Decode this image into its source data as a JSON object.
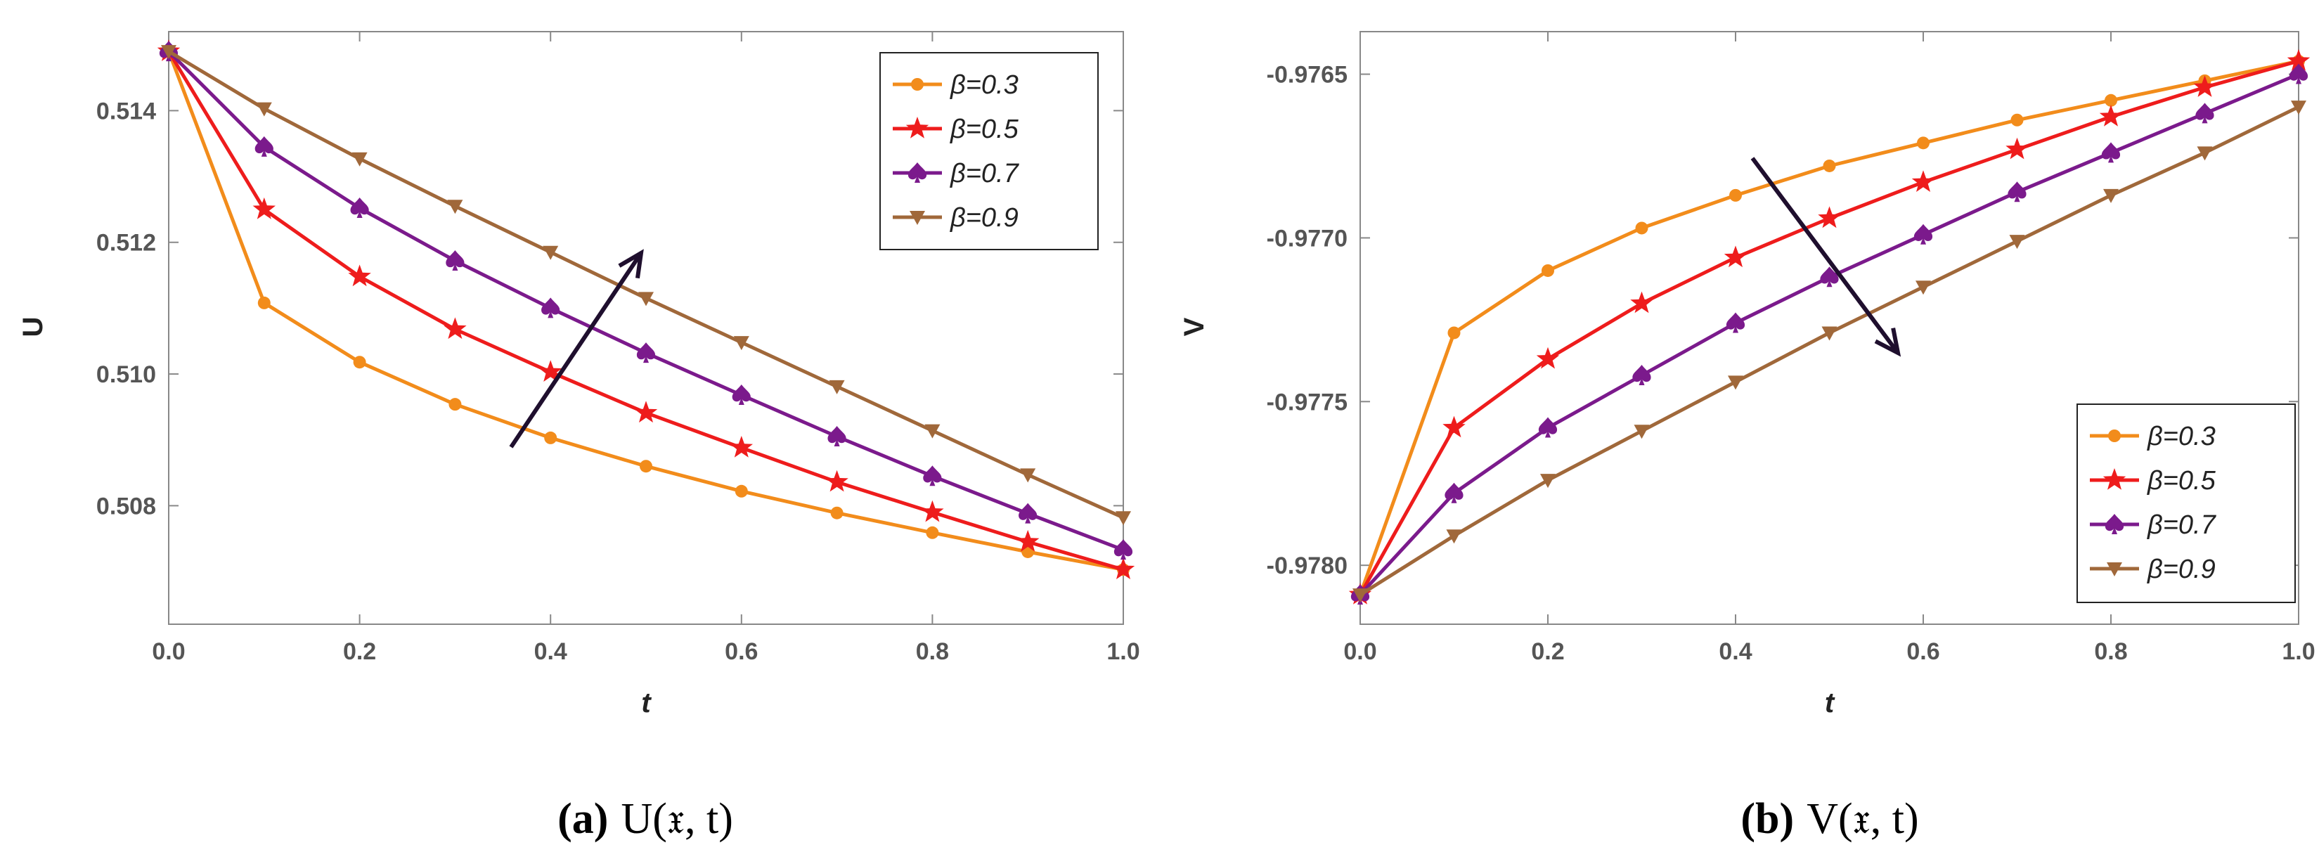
{
  "chart_data": [
    {
      "type": "line",
      "caption_label": "(a)",
      "caption_math": "U(𝔵, t)",
      "xlabel": "t",
      "ylabel": "U",
      "xlim": [
        0,
        1
      ],
      "ylim": [
        0.5062,
        0.5152
      ],
      "x": [
        0.0,
        0.1,
        0.2,
        0.3,
        0.4,
        0.5,
        0.6,
        0.7,
        0.8,
        0.9,
        1.0
      ],
      "x_ticks": [
        "0.0",
        "0.2",
        "0.4",
        "0.6",
        "0.8",
        "1.0"
      ],
      "y_ticks": [
        "0.508",
        "0.510",
        "0.512",
        "0.514"
      ],
      "legend": "top-right",
      "arrow": "increasing β",
      "series": [
        {
          "name": "β=0.3",
          "color": "#f28c1b",
          "marker": "circle",
          "values": [
            0.5149,
            0.51108,
            0.51018,
            0.50954,
            0.50903,
            0.5086,
            0.50822,
            0.50789,
            0.50759,
            0.5073,
            0.50703
          ]
        },
        {
          "name": "β=0.5",
          "color": "#ee1c1c",
          "marker": "star",
          "values": [
            0.5149,
            0.5125,
            0.51148,
            0.51068,
            0.51003,
            0.50941,
            0.50888,
            0.50836,
            0.5079,
            0.50745,
            0.50703
          ]
        },
        {
          "name": "β=0.7",
          "color": "#7b1a8c",
          "marker": "spade",
          "values": [
            0.5149,
            0.51345,
            0.51252,
            0.51172,
            0.511,
            0.51032,
            0.50968,
            0.50905,
            0.50845,
            0.50788,
            0.50733
          ]
        },
        {
          "name": "β=0.9",
          "color": "#a0683a",
          "marker": "triangle-down",
          "values": [
            0.5149,
            0.51403,
            0.51327,
            0.51255,
            0.51185,
            0.51115,
            0.51048,
            0.50981,
            0.50914,
            0.50847,
            0.50782
          ]
        }
      ]
    },
    {
      "type": "line",
      "caption_label": "(b)",
      "caption_math": "V(𝔵, t)",
      "xlabel": "t",
      "ylabel": "V",
      "xlim": [
        0,
        1
      ],
      "ylim": [
        -0.97818,
        -0.97637
      ],
      "x": [
        0.0,
        0.1,
        0.2,
        0.3,
        0.4,
        0.5,
        0.6,
        0.7,
        0.8,
        0.9,
        1.0
      ],
      "x_ticks": [
        "0.0",
        "0.2",
        "0.4",
        "0.6",
        "0.8",
        "1.0"
      ],
      "y_ticks": [
        "-0.9780",
        "-0.9775",
        "-0.9770",
        "-0.9765"
      ],
      "legend": "bottom-right",
      "arrow": "increasing β",
      "series": [
        {
          "name": "β=0.3",
          "color": "#f28c1b",
          "marker": "circle",
          "values": [
            -0.97809,
            -0.97729,
            -0.9771,
            -0.97697,
            -0.97687,
            -0.97678,
            -0.97671,
            -0.97664,
            -0.97658,
            -0.97652,
            -0.97646
          ]
        },
        {
          "name": "β=0.5",
          "color": "#ee1c1c",
          "marker": "star",
          "values": [
            -0.97809,
            -0.97758,
            -0.97737,
            -0.9772,
            -0.97706,
            -0.97694,
            -0.97683,
            -0.97673,
            -0.97663,
            -0.97654,
            -0.97646
          ]
        },
        {
          "name": "β=0.7",
          "color": "#7b1a8c",
          "marker": "spade",
          "values": [
            -0.97809,
            -0.97778,
            -0.97758,
            -0.97742,
            -0.97726,
            -0.97712,
            -0.97699,
            -0.97686,
            -0.97674,
            -0.97662,
            -0.9765
          ]
        },
        {
          "name": "β=0.9",
          "color": "#a0683a",
          "marker": "triangle-down",
          "values": [
            -0.97809,
            -0.97791,
            -0.97774,
            -0.97759,
            -0.97744,
            -0.97729,
            -0.97715,
            -0.97701,
            -0.97687,
            -0.97674,
            -0.9766
          ]
        }
      ]
    }
  ]
}
